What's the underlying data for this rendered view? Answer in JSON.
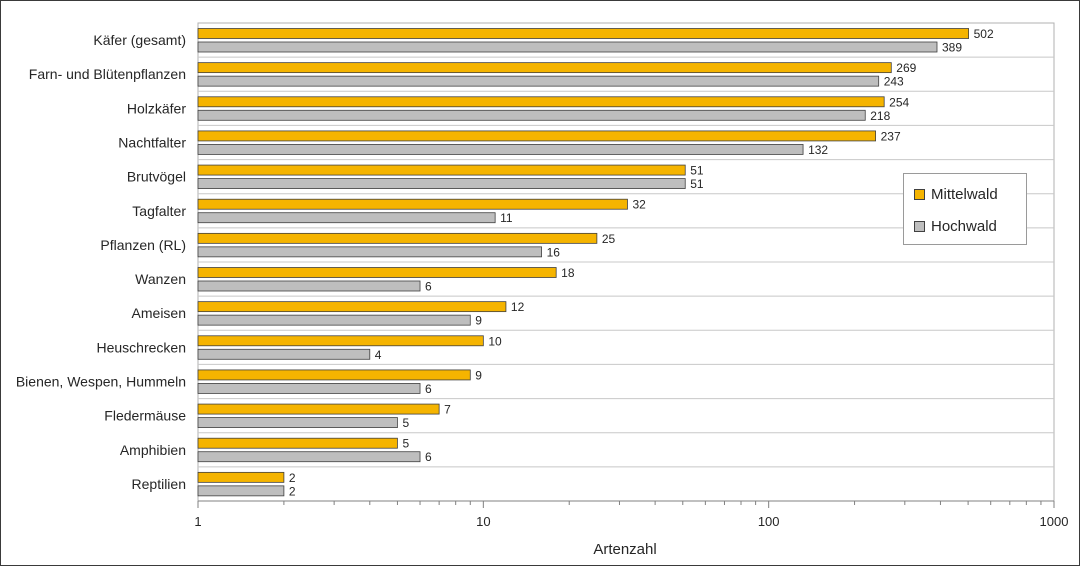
{
  "chart_data": {
    "type": "bar",
    "orientation": "horizontal",
    "title": "",
    "xlabel": "Artenzahl",
    "ylabel": "",
    "x_scale": "log",
    "xlim": [
      1,
      1000
    ],
    "x_ticks": [
      1,
      10,
      100,
      1000
    ],
    "x_tick_labels": [
      "1",
      "10",
      "100",
      "1000"
    ],
    "grid": "horizontal category separators",
    "legend_position": "right",
    "categories": [
      "Käfer (gesamt)",
      "Farn- und Blütenpflanzen",
      "Holzkäfer",
      "Nachtfalter",
      "Brutvögel",
      "Tagfalter",
      "Pflanzen (RL)",
      "Wanzen",
      "Ameisen",
      "Heuschrecken",
      "Bienen, Wespen, Hummeln",
      "Fledermäuse",
      "Amphibien",
      "Reptilien"
    ],
    "series": [
      {
        "name": "Mittelwald",
        "color": "#F5B400",
        "values": [
          502,
          269,
          254,
          237,
          51,
          32,
          25,
          18,
          12,
          10,
          9,
          7,
          5,
          2
        ]
      },
      {
        "name": "Hochwald",
        "color": "#BEBEBE",
        "values": [
          389,
          243,
          218,
          132,
          51,
          11,
          16,
          6,
          9,
          4,
          6,
          5,
          6,
          2
        ]
      }
    ]
  }
}
